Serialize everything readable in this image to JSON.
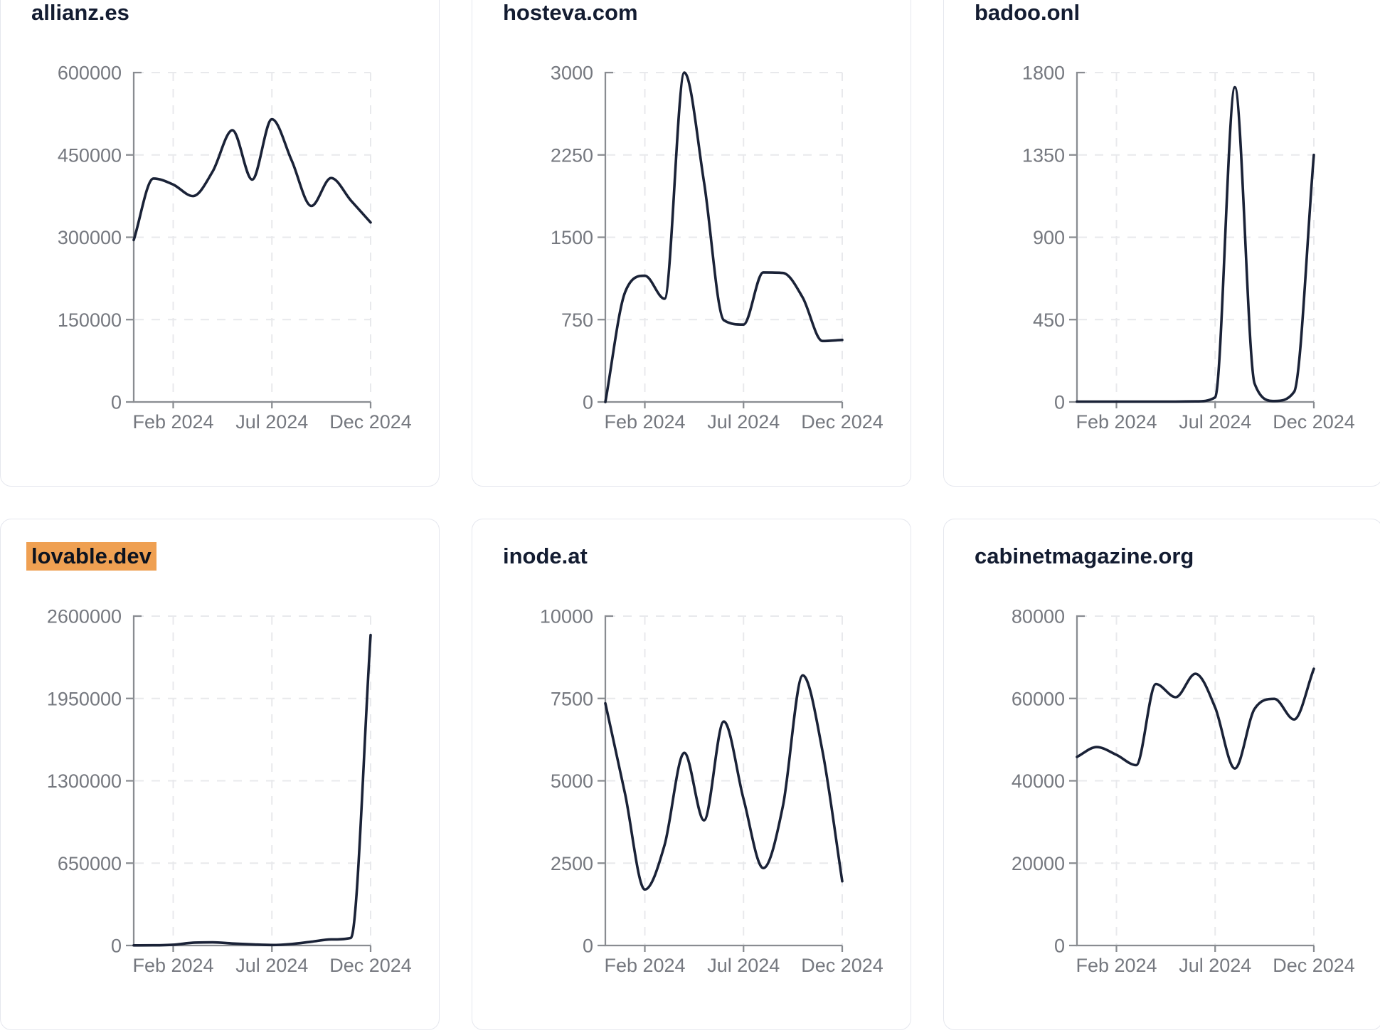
{
  "page": {
    "background_color": "#ffffff",
    "layout": "3x2-card-grid-of-traffic-sparklines"
  },
  "styles": {
    "line_color": "#1a2237",
    "title_color": "#131c31",
    "tick_label_color": "#75787f",
    "axis_color": "#898c91",
    "grid_color": "#e8e9ec",
    "card_border_color": "#e5e7ee",
    "card_background": "#ffffff",
    "highlight_color": "#efa052"
  },
  "chart_data": [
    {
      "type": "line",
      "title": "allianz.es",
      "title_highlighted": false,
      "x": [
        "Dec 2023",
        "Jan 2024",
        "Feb 2024",
        "Mar 2024",
        "Apr 2024",
        "May 2024",
        "Jun 2024",
        "Jul 2024",
        "Aug 2024",
        "Sep 2024",
        "Oct 2024",
        "Nov 2024",
        "Dec 2024"
      ],
      "values": [
        295000,
        407000,
        396000,
        375000,
        420000,
        495000,
        405000,
        515000,
        440000,
        357000,
        408000,
        367000,
        327000
      ],
      "y_ticks": [
        0,
        150000,
        300000,
        450000,
        600000
      ],
      "ylim": [
        0,
        600000
      ],
      "x_tick_labels": [
        "Feb 2024",
        "Jul 2024",
        "Dec 2024"
      ],
      "x_tick_indices": [
        2,
        7,
        12
      ],
      "grid": true,
      "legend": "none"
    },
    {
      "type": "line",
      "title": "hosteva.com",
      "title_highlighted": false,
      "x": [
        "Dec 2023",
        "Jan 2024",
        "Feb 2024",
        "Mar 2024",
        "Apr 2024",
        "May 2024",
        "Jun 2024",
        "Jul 2024",
        "Aug 2024",
        "Sep 2024",
        "Oct 2024",
        "Nov 2024",
        "Dec 2024"
      ],
      "values": [
        0,
        1000,
        1150,
        940,
        3000,
        2000,
        745,
        705,
        1180,
        1175,
        950,
        555,
        565
      ],
      "y_ticks": [
        0,
        750,
        1500,
        2250,
        3000
      ],
      "ylim": [
        0,
        3000
      ],
      "x_tick_labels": [
        "Feb 2024",
        "Jul 2024",
        "Dec 2024"
      ],
      "x_tick_indices": [
        2,
        7,
        12
      ],
      "grid": true,
      "legend": "none"
    },
    {
      "type": "line",
      "title": "badoo.onl",
      "title_highlighted": false,
      "x": [
        "Dec 2023",
        "Jan 2024",
        "Feb 2024",
        "Mar 2024",
        "Apr 2024",
        "May 2024",
        "Jun 2024",
        "Jul 2024",
        "Aug 2024",
        "Sep 2024",
        "Oct 2024",
        "Nov 2024",
        "Dec 2024"
      ],
      "values": [
        2,
        2,
        2,
        2,
        2,
        2,
        3,
        25,
        1720,
        100,
        5,
        55,
        1350
      ],
      "y_ticks": [
        0,
        450,
        900,
        1350,
        1800
      ],
      "ylim": [
        0,
        1800
      ],
      "x_tick_labels": [
        "Feb 2024",
        "Jul 2024",
        "Dec 2024"
      ],
      "x_tick_indices": [
        2,
        7,
        12
      ],
      "grid": true,
      "legend": "none"
    },
    {
      "type": "line",
      "title": "lovable.dev",
      "title_highlighted": true,
      "x": [
        "Dec 2023",
        "Jan 2024",
        "Feb 2024",
        "Mar 2024",
        "Apr 2024",
        "May 2024",
        "Jun 2024",
        "Jul 2024",
        "Aug 2024",
        "Sep 2024",
        "Oct 2024",
        "Nov 2024",
        "Dec 2024"
      ],
      "values": [
        1000,
        1500,
        6000,
        22000,
        25000,
        16000,
        9000,
        4000,
        12000,
        30000,
        48000,
        60000,
        2450000
      ],
      "y_ticks": [
        0,
        650000,
        1300000,
        1950000,
        2600000
      ],
      "ylim": [
        0,
        2600000
      ],
      "x_tick_labels": [
        "Feb 2024",
        "Jul 2024",
        "Dec 2024"
      ],
      "x_tick_indices": [
        2,
        7,
        12
      ],
      "grid": true,
      "legend": "none"
    },
    {
      "type": "line",
      "title": "inode.at",
      "title_highlighted": false,
      "x": [
        "Dec 2023",
        "Jan 2024",
        "Feb 2024",
        "Mar 2024",
        "Apr 2024",
        "May 2024",
        "Jun 2024",
        "Jul 2024",
        "Aug 2024",
        "Sep 2024",
        "Oct 2024",
        "Nov 2024",
        "Dec 2024"
      ],
      "values": [
        7350,
        4600,
        1700,
        3050,
        5850,
        3800,
        6800,
        4450,
        2350,
        4250,
        8200,
        5900,
        1950
      ],
      "y_ticks": [
        0,
        2500,
        5000,
        7500,
        10000
      ],
      "ylim": [
        0,
        10000
      ],
      "x_tick_labels": [
        "Feb 2024",
        "Jul 2024",
        "Dec 2024"
      ],
      "x_tick_indices": [
        2,
        7,
        12
      ],
      "grid": true,
      "legend": "none"
    },
    {
      "type": "line",
      "title": "cabinetmagazine.org",
      "title_highlighted": false,
      "x": [
        "Dec 2023",
        "Jan 2024",
        "Feb 2024",
        "Mar 2024",
        "Apr 2024",
        "May 2024",
        "Jun 2024",
        "Jul 2024",
        "Aug 2024",
        "Sep 2024",
        "Oct 2024",
        "Nov 2024",
        "Dec 2024"
      ],
      "values": [
        45800,
        48200,
        46300,
        43800,
        63500,
        60300,
        66000,
        57800,
        43000,
        57500,
        59900,
        54900,
        67200
      ],
      "y_ticks": [
        0,
        20000,
        40000,
        60000,
        80000
      ],
      "ylim": [
        0,
        80000
      ],
      "x_tick_labels": [
        "Feb 2024",
        "Jul 2024",
        "Dec 2024"
      ],
      "x_tick_indices": [
        2,
        7,
        12
      ],
      "grid": true,
      "legend": "none"
    }
  ]
}
